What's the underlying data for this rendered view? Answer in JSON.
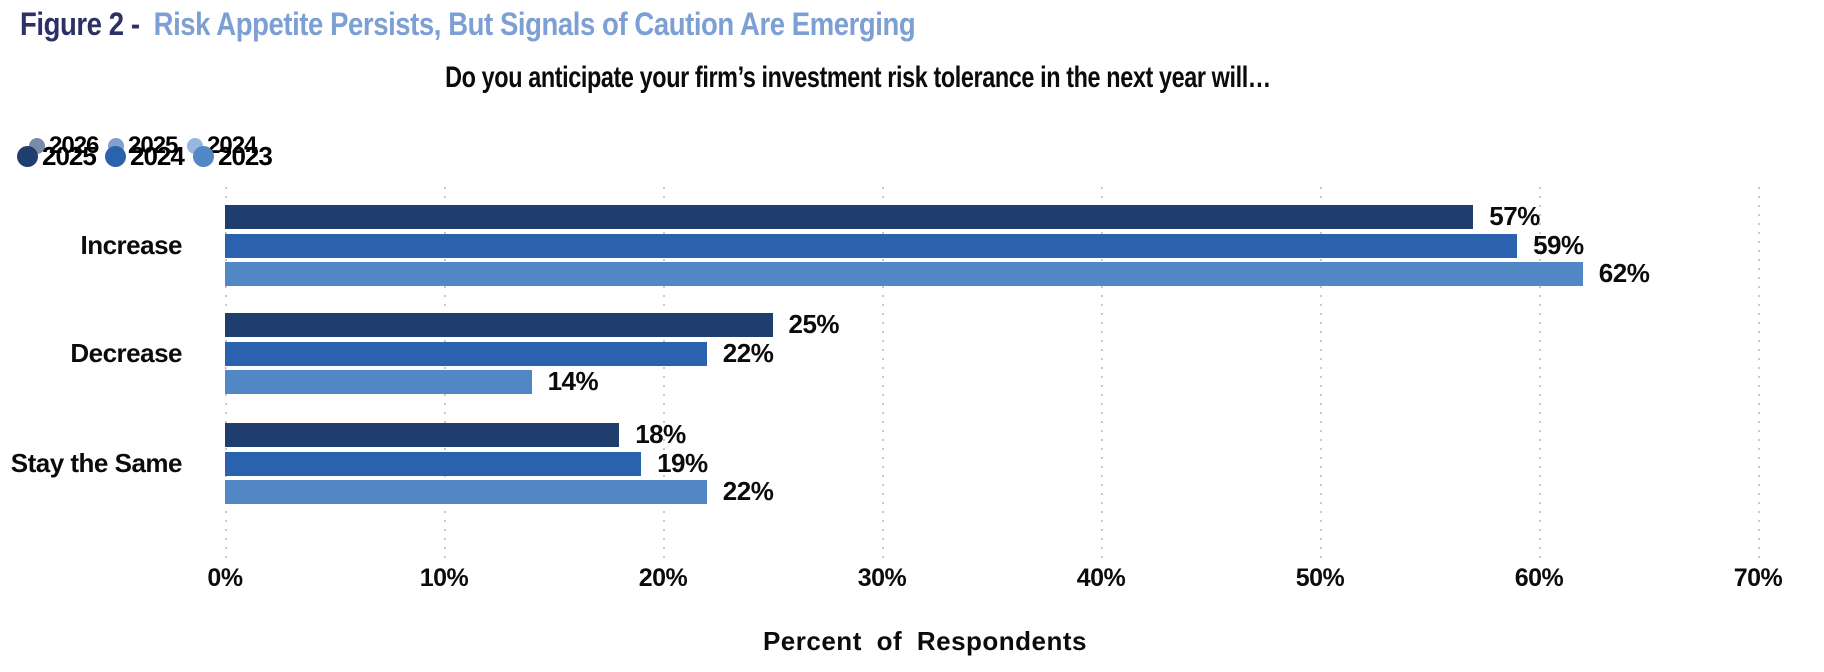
{
  "header": {
    "figure_label": "Figure 2 -",
    "title": "Risk Appetite Persists, But Signals of Caution Are Emerging"
  },
  "subtitle": "Do you anticipate your firm’s investment risk tolerance in the next year will…",
  "legend": {
    "back_row": [
      {
        "year": "2026",
        "color": "#1F3E6D"
      },
      {
        "year": "2025",
        "color": "#2B62AE"
      },
      {
        "year": "2024",
        "color": "#5287C5"
      }
    ],
    "front_row": [
      {
        "year": "2025",
        "color": "#1F3E6D"
      },
      {
        "year": "2024",
        "color": "#2B62AE"
      },
      {
        "year": "2023",
        "color": "#5287C5"
      }
    ]
  },
  "chart_data": {
    "type": "bar",
    "orientation": "horizontal",
    "title": "Do you anticipate your firm’s investment risk tolerance in the next year will…",
    "categories": [
      "Increase",
      "Decrease",
      "Stay the Same"
    ],
    "series": [
      {
        "name": "2025",
        "color": "#1F3E6D",
        "values": [
          57,
          25,
          18
        ]
      },
      {
        "name": "2024",
        "color": "#2B62AE",
        "values": [
          59,
          22,
          19
        ]
      },
      {
        "name": "2023",
        "color": "#5287C5",
        "values": [
          62,
          14,
          22
        ]
      }
    ],
    "value_suffix": "%",
    "data_labels": [
      [
        "57%",
        "25%",
        "18%"
      ],
      [
        "59%",
        "22%",
        "19%"
      ],
      [
        "62%",
        "14%",
        "22%"
      ]
    ],
    "xlabel": "Percent of Respondents",
    "x_ticks": [
      "0%",
      "10%",
      "20%",
      "30%",
      "40%",
      "50%",
      "60%",
      "70%"
    ],
    "xlim": [
      0,
      70
    ],
    "grid": "dotted-vertical",
    "legend_position": "top-left"
  },
  "colors": {
    "title_label": "#2B3166",
    "title_rest": "#7C9FD4",
    "grid": "#C9C9C9",
    "text": "#0B0B0B"
  }
}
